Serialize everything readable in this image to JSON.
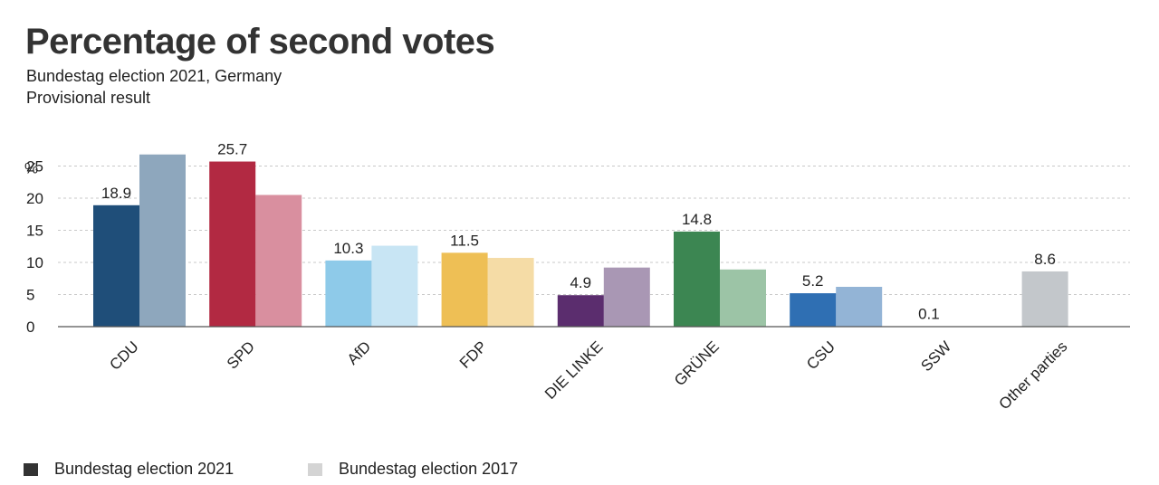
{
  "title": "Percentage of second votes",
  "subtitle": [
    "Bundestag election 2021, Germany",
    "Provisional result"
  ],
  "chart_data": {
    "type": "bar",
    "title": "Percentage of second votes",
    "ylabel": "%",
    "ylim": [
      0,
      25
    ],
    "yticks": [
      0,
      5,
      10,
      15,
      20,
      25
    ],
    "categories": [
      "CDU",
      "SPD",
      "AfD",
      "FDP",
      "DIE LINKE",
      "GRÜNE",
      "CSU",
      "SSW",
      "Other parties"
    ],
    "series": [
      {
        "name": "Bundestag election 2021",
        "values": [
          18.9,
          25.7,
          10.3,
          11.5,
          4.9,
          14.8,
          5.2,
          0.1,
          8.6
        ],
        "labels": [
          "18.9",
          "25.7",
          "10.3",
          "11.5",
          "4.9",
          "14.8",
          "5.2",
          "0.1",
          "8.6"
        ],
        "colors": [
          "#1f4e79",
          "#b22942",
          "#8ecae9",
          "#eebf55",
          "#5b2d6e",
          "#3c8652",
          "#2f6fb3",
          "#ffffff",
          "#c3c7cb"
        ]
      },
      {
        "name": "Bundestag election 2017",
        "values": [
          26.8,
          20.5,
          12.6,
          10.7,
          9.2,
          8.9,
          6.2,
          0,
          0
        ],
        "colors": [
          "#8ea7bd",
          "#d98f9f",
          "#c8e5f4",
          "#f5dca6",
          "#a997b4",
          "#9cc4a6",
          "#93b4d6",
          "#ffffff",
          "#ffffff"
        ]
      }
    ],
    "grid": true,
    "legend_position": "bottom-left",
    "legend_colors": [
      "#333333",
      "#d4d4d4"
    ]
  }
}
